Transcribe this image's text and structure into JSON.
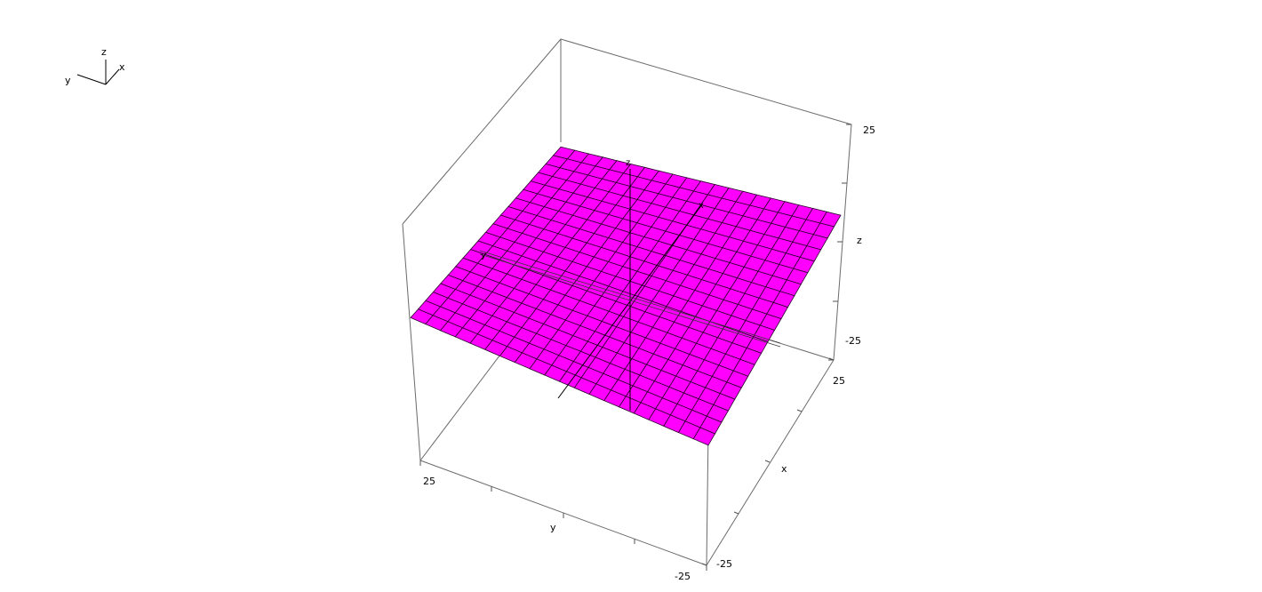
{
  "chart_data": {
    "type": "surface",
    "surface_color": "#ff00ff",
    "grid_divisions": 20,
    "x_range": [
      -25,
      25
    ],
    "y_range": [
      -25,
      25
    ],
    "z_range": [
      -25,
      25
    ],
    "surface": {
      "description_z": "near-planar surface, slightly tilted",
      "z_at_corners": {
        "x-25_y25": 2,
        "x25_y25": -3,
        "x25_y-25": 3,
        "x-25_y-25": -1
      }
    },
    "axes": {
      "x": {
        "label": "x",
        "min_label": "-25",
        "max_label": "25"
      },
      "y": {
        "label": "y",
        "min_label": "-25",
        "max_label": "25"
      },
      "z": {
        "label": "z",
        "min_label": "-25",
        "max_label": "25"
      }
    },
    "inner_axis_labels": {
      "x": "x",
      "y": "y",
      "z": "z"
    },
    "orientation_gizmo": {
      "x": "x",
      "y": "y",
      "z": "z"
    }
  }
}
